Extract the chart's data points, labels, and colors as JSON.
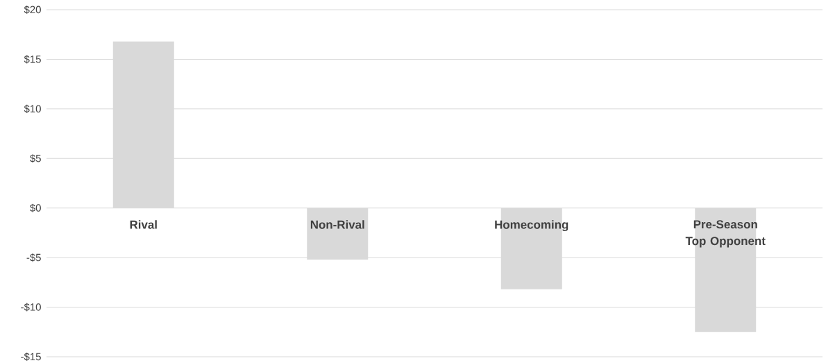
{
  "chart_data": {
    "type": "bar",
    "categories": [
      "Rival",
      "Non-Rival",
      "Homecoming",
      "Pre-Season Top Opponent"
    ],
    "values": [
      16.8,
      -5.2,
      -8.2,
      -12.5
    ],
    "color": "#d9d9d9",
    "ylim": [
      -15,
      20
    ],
    "yticks": [
      {
        "value": -15,
        "label": "-$15"
      },
      {
        "value": -10,
        "label": "-$10"
      },
      {
        "value": -5,
        "label": "-$5"
      },
      {
        "value": 0,
        "label": "$0"
      },
      {
        "value": 5,
        "label": "$5"
      },
      {
        "value": 10,
        "label": "$10"
      },
      {
        "value": 15,
        "label": "$15"
      },
      {
        "value": 20,
        "label": "$20"
      }
    ],
    "grid": "y"
  }
}
